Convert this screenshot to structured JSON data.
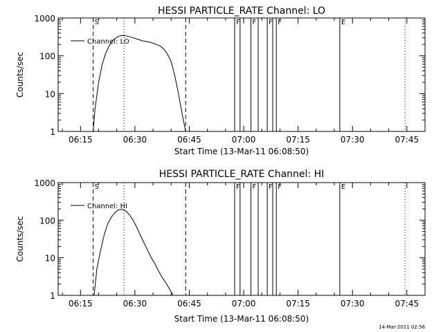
{
  "footer": {
    "timestamp": "14-Mar-2011 02:56"
  },
  "chart_data": [
    {
      "type": "line",
      "title": "HESSI PARTICLE_RATE Channel: LO",
      "xlabel": "Start Time (13-Mar-11 06:08:50)",
      "ylabel": "Counts/sec",
      "xlim": [
        "06:08:50",
        "07:50:00"
      ],
      "ylim": [
        1,
        1000
      ],
      "y_scale": "log",
      "grid": false,
      "legend": {
        "placement": "top-left"
      },
      "x_ticks": [
        "06:15",
        "06:30",
        "06:45",
        "07:00",
        "07:15",
        "07:30",
        "07:45"
      ],
      "y_ticks": [
        "1",
        "10",
        "100",
        "1000"
      ],
      "vlines": [
        {
          "time": "06:18:30",
          "style": "dashed",
          "label": "S"
        },
        {
          "time": "06:27:00",
          "style": "dotted",
          "label": ""
        },
        {
          "time": "06:44:00",
          "style": "dashed",
          "label": ""
        },
        {
          "time": "06:57:30",
          "style": "solid",
          "label": "F"
        },
        {
          "time": "06:59:00",
          "style": "solid",
          "label": ""
        },
        {
          "time": "07:02:00",
          "style": "solid",
          "label": "F"
        },
        {
          "time": "07:04:00",
          "style": "solid",
          "label": ""
        },
        {
          "time": "07:06:30",
          "style": "solid",
          "label": "F"
        },
        {
          "time": "07:08:00",
          "style": "solid",
          "label": ""
        },
        {
          "time": "07:09:00",
          "style": "solid",
          "label": "F"
        },
        {
          "time": "07:26:30",
          "style": "solid",
          "label": "E"
        },
        {
          "time": "07:44:30",
          "style": "dotted",
          "label": ""
        }
      ],
      "series": [
        {
          "name": "Channel: LO",
          "x": [
            "06:18:30",
            "06:19:00",
            "06:20:00",
            "06:21:00",
            "06:22:00",
            "06:23:00",
            "06:24:00",
            "06:25:00",
            "06:26:00",
            "06:27:00",
            "06:28:00",
            "06:29:00",
            "06:30:00",
            "06:31:00",
            "06:32:00",
            "06:33:00",
            "06:34:00",
            "06:35:00",
            "06:36:00",
            "06:37:00",
            "06:38:00",
            "06:39:00",
            "06:40:00",
            "06:41:00",
            "06:42:00",
            "06:43:00",
            "06:44:00"
          ],
          "y": [
            1,
            4,
            20,
            60,
            120,
            190,
            260,
            310,
            340,
            345,
            330,
            310,
            290,
            270,
            250,
            240,
            230,
            215,
            200,
            180,
            150,
            110,
            70,
            30,
            10,
            3,
            1
          ]
        }
      ]
    },
    {
      "type": "line",
      "title": "HESSI PARTICLE_RATE Channel: HI",
      "xlabel": "Start Time (13-Mar-11 06:08:50)",
      "ylabel": "Counts/sec",
      "xlim": [
        "06:08:50",
        "07:50:00"
      ],
      "ylim": [
        1,
        1000
      ],
      "y_scale": "log",
      "grid": false,
      "legend": {
        "placement": "top-left"
      },
      "x_ticks": [
        "06:15",
        "06:30",
        "06:45",
        "07:00",
        "07:15",
        "07:30",
        "07:45"
      ],
      "y_ticks": [
        "1",
        "10",
        "100",
        "1000"
      ],
      "vlines": [
        {
          "time": "06:18:30",
          "style": "dashed",
          "label": "S"
        },
        {
          "time": "06:27:00",
          "style": "dotted",
          "label": ""
        },
        {
          "time": "06:44:00",
          "style": "dashed",
          "label": ""
        },
        {
          "time": "06:57:30",
          "style": "solid",
          "label": "F"
        },
        {
          "time": "06:59:00",
          "style": "solid",
          "label": ""
        },
        {
          "time": "07:02:00",
          "style": "solid",
          "label": "F"
        },
        {
          "time": "07:04:00",
          "style": "solid",
          "label": ""
        },
        {
          "time": "07:06:30",
          "style": "solid",
          "label": "F"
        },
        {
          "time": "07:08:00",
          "style": "solid",
          "label": ""
        },
        {
          "time": "07:09:00",
          "style": "solid",
          "label": "F"
        },
        {
          "time": "07:26:30",
          "style": "solid",
          "label": "E"
        },
        {
          "time": "07:44:30",
          "style": "dotted",
          "label": ""
        }
      ],
      "series": [
        {
          "name": "Channel: HI",
          "x": [
            "06:18:45",
            "06:19:30",
            "06:20:30",
            "06:21:30",
            "06:22:30",
            "06:23:30",
            "06:24:30",
            "06:25:30",
            "06:26:30",
            "06:27:30",
            "06:28:30",
            "06:29:30",
            "06:30:30",
            "06:31:30",
            "06:32:30",
            "06:33:30",
            "06:34:30",
            "06:35:30",
            "06:36:30",
            "06:37:30",
            "06:38:30",
            "06:39:30",
            "06:40:30"
          ],
          "y": [
            1,
            5,
            15,
            40,
            80,
            120,
            160,
            190,
            195,
            175,
            140,
            100,
            65,
            40,
            25,
            16,
            10,
            7,
            4.5,
            3,
            2.2,
            1.5,
            1
          ]
        }
      ]
    }
  ]
}
